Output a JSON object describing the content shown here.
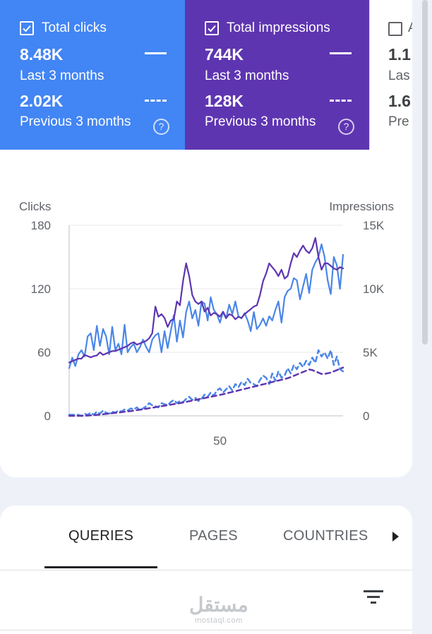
{
  "metrics": {
    "clicks": {
      "label": "Total clicks",
      "current_value": "8.48K",
      "current_period": "Last 3 months",
      "previous_value": "2.02K",
      "previous_period": "Previous 3 months",
      "help": "?",
      "color": "#4285f4",
      "checked": true
    },
    "impressions": {
      "label": "Total impressions",
      "current_value": "744K",
      "current_period": "Last 3 months",
      "previous_value": "128K",
      "previous_period": "Previous 3 months",
      "help": "?",
      "color": "#5e35b1",
      "checked": true
    },
    "ctr": {
      "label": "A",
      "current_value": "1.1",
      "current_period": "Las",
      "previous_value": "1.6",
      "previous_period": "Pre",
      "checked": false
    }
  },
  "chart_data": {
    "type": "line",
    "ylabel_left": "Clicks",
    "ylabel_right": "Impressions",
    "left_ticks": [
      "180",
      "120",
      "60",
      "0"
    ],
    "right_ticks": [
      "15K",
      "10K",
      "5K",
      "0"
    ],
    "left_ylim": [
      0,
      180
    ],
    "right_ylim": [
      0,
      15000
    ],
    "x_tick_label": "50",
    "x_tick_value": 50,
    "x_range": [
      1,
      90
    ],
    "grid": true,
    "colors": {
      "clicks": "#4a86e8",
      "impressions": "#5e35b1"
    },
    "series": [
      {
        "key": "clicks_current",
        "axis": "left",
        "style": "solid",
        "color": "#4a86e8",
        "values": [
          45,
          55,
          47,
          58,
          62,
          56,
          75,
          78,
          62,
          85,
          66,
          82,
          75,
          58,
          84,
          62,
          68,
          58,
          86,
          60,
          65,
          68,
          60,
          65,
          72,
          65,
          60,
          72,
          76,
          78,
          60,
          80,
          64,
          80,
          95,
          70,
          90,
          74,
          98,
          108,
          92,
          100,
          85,
          108,
          106,
          90,
          112,
          100,
          96,
          88,
          98,
          92,
          105,
          96,
          108,
          94,
          92,
          97,
          90,
          80,
          98,
          82,
          86,
          92,
          85,
          94,
          90,
          100,
          108,
          88,
          112,
          118,
          120,
          130,
          128,
          110,
          122,
          134,
          116,
          138,
          145,
          150,
          162,
          150,
          128,
          115,
          150,
          142,
          120,
          152
        ]
      },
      {
        "key": "clicks_previous",
        "axis": "left",
        "style": "dashed",
        "color": "#4a86e8",
        "values": [
          1,
          1,
          1,
          1,
          0,
          2,
          1,
          3,
          1,
          4,
          2,
          5,
          3,
          2,
          4,
          3,
          5,
          4,
          6,
          5,
          7,
          6,
          8,
          5,
          7,
          9,
          12,
          10,
          9,
          8,
          12,
          11,
          10,
          13,
          15,
          12,
          14,
          13,
          16,
          18,
          15,
          17,
          14,
          16,
          20,
          18,
          22,
          19,
          24,
          26,
          22,
          25,
          28,
          24,
          30,
          27,
          32,
          29,
          35,
          31,
          30,
          28,
          34,
          38,
          36,
          30,
          40,
          33,
          42,
          36,
          38,
          45,
          40,
          48,
          44,
          50,
          46,
          52,
          48,
          55,
          50,
          62,
          56,
          60,
          54,
          62,
          48,
          56,
          44,
          42
        ]
      },
      {
        "key": "impressions_current",
        "axis": "right",
        "style": "solid",
        "color": "#5e35b1",
        "values": [
          4200,
          4300,
          4400,
          4500,
          4500,
          4800,
          4700,
          4600,
          4700,
          4750,
          5000,
          4800,
          4900,
          5000,
          5100,
          5100,
          5200,
          5300,
          5400,
          5500,
          5700,
          5800,
          5600,
          5700,
          5800,
          5900,
          6100,
          6500,
          8600,
          7800,
          8000,
          7700,
          7000,
          7500,
          7600,
          9000,
          8700,
          10600,
          12000,
          11000,
          9500,
          9000,
          8800,
          9000,
          8200,
          8500,
          7900,
          8100,
          8000,
          7800,
          8200,
          7700,
          8000,
          7900,
          7600,
          7800,
          7700,
          8000,
          8200,
          8400,
          8600,
          8700,
          9500,
          10600,
          11200,
          12000,
          11700,
          11400,
          11000,
          11500,
          10800,
          11000,
          12000,
          12800,
          12500,
          13000,
          13400,
          13000,
          12800,
          13200,
          14000,
          12500,
          11500,
          12000,
          12000,
          11800,
          11600,
          11500,
          11700,
          11600
        ]
      },
      {
        "key": "impressions_previous",
        "axis": "right",
        "style": "dashed",
        "color": "#5e35b1",
        "values": [
          0,
          0,
          0,
          0,
          0,
          0,
          20,
          40,
          60,
          80,
          100,
          120,
          150,
          180,
          210,
          240,
          260,
          290,
          320,
          350,
          380,
          410,
          450,
          480,
          520,
          560,
          600,
          640,
          680,
          720,
          760,
          800,
          840,
          880,
          920,
          960,
          1000,
          1050,
          1100,
          1150,
          1200,
          1250,
          1300,
          1350,
          1400,
          1450,
          1500,
          1550,
          1600,
          1650,
          1700,
          1760,
          1820,
          1880,
          1940,
          2000,
          2060,
          2120,
          2180,
          2240,
          2300,
          2360,
          2420,
          2480,
          2540,
          2600,
          2660,
          2720,
          2780,
          2840,
          2900,
          2960,
          3050,
          3150,
          3250,
          3350,
          3450,
          3550,
          3650,
          3600,
          3500,
          3400,
          3300,
          3300,
          3350,
          3400,
          3500,
          3600,
          3700,
          3800
        ]
      }
    ]
  },
  "tabs": [
    {
      "label": "QUERIES",
      "active": true
    },
    {
      "label": "PAGES",
      "active": false
    },
    {
      "label": "COUNTRIES",
      "active": false
    }
  ],
  "watermark": {
    "arabic": "مستقل",
    "latin": "mostaql.com"
  },
  "icons": {
    "check": "check-icon",
    "help": "help-circle-icon",
    "filter": "filter-icon",
    "next": "chevron-right-icon"
  }
}
